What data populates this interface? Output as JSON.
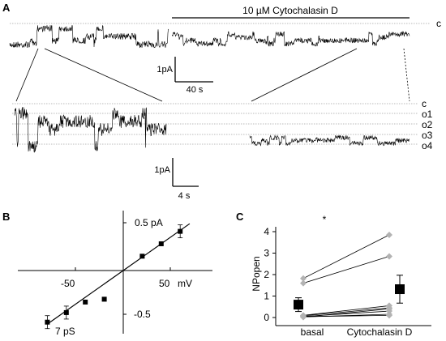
{
  "panel_a": {
    "label": "A",
    "treatment_label": "10 µM Cytochalasin D",
    "closed_label": "c",
    "scalebar_top": {
      "current": "1pA",
      "time": "40 s"
    },
    "scalebar_bottom": {
      "current": "1pA",
      "time": "4 s"
    },
    "state_levels": [
      "c",
      "o1",
      "o2",
      "o3",
      "o4"
    ]
  },
  "panel_b": {
    "label": "B",
    "conductance_label": "7 pS",
    "x_unit": "mV",
    "x_ticks": [
      "-50",
      "50"
    ],
    "y_ticks": [
      "0.5 pA",
      "-0.5"
    ]
  },
  "panel_c": {
    "label": "C",
    "significance": "*"
  },
  "chart_data": [
    {
      "type": "scatter",
      "panel": "B",
      "xlabel": "mV",
      "ylabel": "pA",
      "xlim": [
        -80,
        70
      ],
      "ylim": [
        -0.65,
        0.6
      ],
      "x": [
        -80,
        -60,
        -40,
        -20,
        20,
        40,
        60
      ],
      "y": [
        -0.54,
        -0.44,
        -0.33,
        -0.3,
        0.15,
        0.28,
        0.41
      ],
      "fit": {
        "x": [
          -80,
          70
        ],
        "y": [
          -0.56,
          0.49
        ]
      }
    },
    {
      "type": "scatter",
      "panel": "C",
      "ylabel": "NPopen",
      "categories": [
        "basal",
        "Cytochalasin D"
      ],
      "ylim": [
        -0.2,
        4.3
      ],
      "y_ticks": [
        0,
        1,
        2,
        3,
        4
      ],
      "mean": [
        0.6,
        1.32
      ],
      "error": [
        0.32,
        0.65
      ],
      "pairs": [
        [
          1.6,
          2.85
        ],
        [
          1.82,
          3.85
        ],
        [
          0.1,
          0.55
        ],
        [
          0.08,
          0.45
        ],
        [
          0.02,
          0.4
        ],
        [
          0.05,
          0.3
        ],
        [
          0.03,
          0.15
        ],
        [
          0.04,
          0.1
        ]
      ]
    }
  ]
}
